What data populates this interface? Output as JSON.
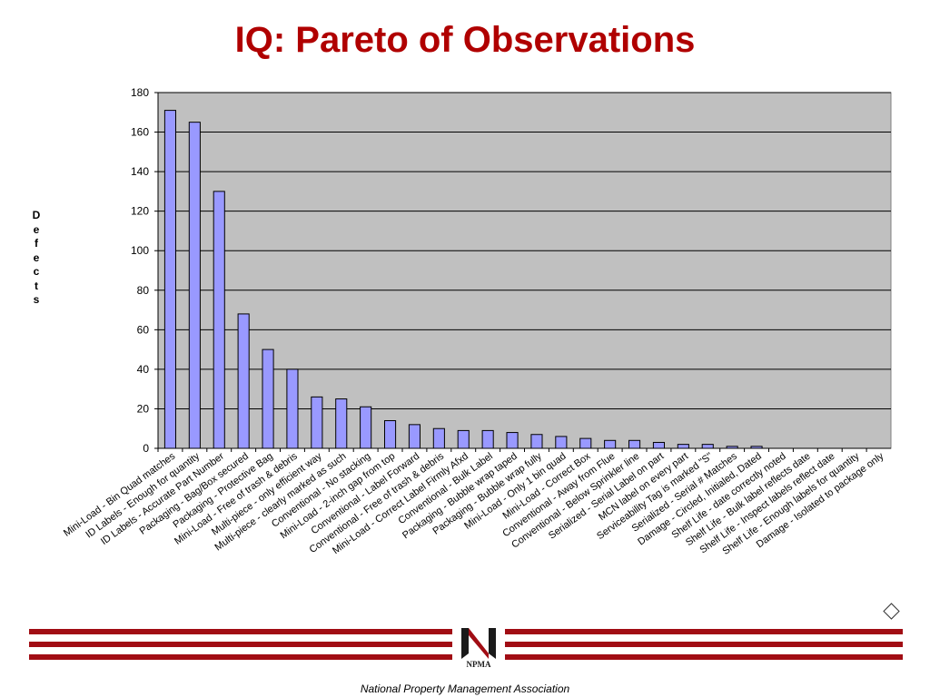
{
  "slide": {
    "title": "IQ: Pareto of Observations",
    "footer": "National Property Management Association",
    "logo_text": "NPMA",
    "accent_color": "#a10d14",
    "title_color": "#b00000"
  },
  "chart_data": {
    "type": "bar",
    "title": "",
    "xlabel": "",
    "ylabel": "D\ne\nf\ne\nc\nt\ns",
    "ylim": [
      0,
      180
    ],
    "yticks": [
      0,
      20,
      40,
      60,
      80,
      100,
      120,
      140,
      160,
      180
    ],
    "grid": true,
    "plot_background": "#c0c0c0",
    "bar_color": "#9999ff",
    "categories": [
      "Mini-Load - Bin Quad matches",
      "ID Labels - Enough for quantity",
      "ID Labels - Accurate Part Number",
      "Packaging - Bag/Box secured",
      "Packaging - Protective Bag",
      "Mini-Load - Free of trash & debris",
      "Multi-piece - only efficient way",
      "Multi-piece - clearly marked as such",
      "Conventional - No stacking",
      "Mini-Load - 2-inch gap from top",
      "Conventional - Label Forward",
      "Conventional - Free of trash & debris",
      "Mini-Load - Correct Label Firmly Afxd",
      "Conventional - Bulk Label",
      "Packaging - Bubble wrap taped",
      "Packaging - Bubble wrap fully",
      "Mini-Load - Only 1 bin quad",
      "Mini-Load - Correct Box",
      "Conventional - Away from Flue",
      "Conventional - Below Sprinkler line",
      "Serialized - Serial Label on part",
      "MCN label on every part",
      "Serviceability Tag is marked \"S\"",
      "Serialized - Serial # Matches",
      "Damage - Circled, Initialed, Dated",
      "Shelf Life - date correctly noted",
      "Shelf Life - Bulk label reflects date",
      "Shelf Life - Inspect labels reflect date",
      "Shelf Life - Enough labels for quantity",
      "Damage - Isolated to package only"
    ],
    "values": [
      171,
      165,
      130,
      68,
      50,
      40,
      26,
      25,
      21,
      14,
      12,
      10,
      9,
      9,
      8,
      7,
      6,
      5,
      4,
      4,
      3,
      2,
      2,
      1,
      1,
      0,
      0,
      0,
      0,
      0
    ]
  }
}
